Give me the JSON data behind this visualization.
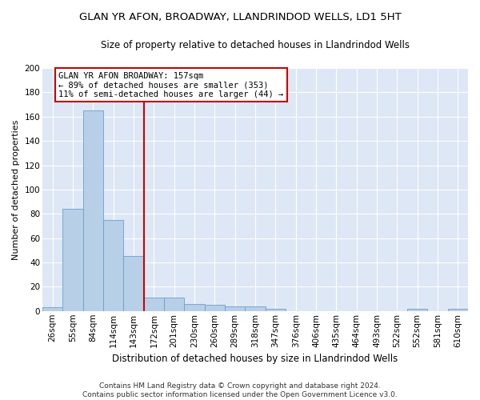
{
  "title": "GLAN YR AFON, BROADWAY, LLANDRINDOD WELLS, LD1 5HT",
  "subtitle": "Size of property relative to detached houses in Llandrindod Wells",
  "xlabel": "Distribution of detached houses by size in Llandrindod Wells",
  "ylabel": "Number of detached properties",
  "categories": [
    "26sqm",
    "55sqm",
    "84sqm",
    "114sqm",
    "143sqm",
    "172sqm",
    "201sqm",
    "230sqm",
    "260sqm",
    "289sqm",
    "318sqm",
    "347sqm",
    "376sqm",
    "406sqm",
    "435sqm",
    "464sqm",
    "493sqm",
    "522sqm",
    "552sqm",
    "581sqm",
    "610sqm"
  ],
  "values": [
    3,
    84,
    165,
    75,
    45,
    11,
    11,
    6,
    5,
    4,
    4,
    2,
    0,
    0,
    0,
    0,
    0,
    0,
    2,
    0,
    2
  ],
  "bar_color": "#b8cfe8",
  "bar_edge_color": "#6a9fcb",
  "bg_color": "#dde7f5",
  "grid_color": "#ffffff",
  "vline_color": "#cc0000",
  "vline_x_index": 5,
  "annotation_line1": "GLAN YR AFON BROADWAY: 157sqm",
  "annotation_line2": "← 89% of detached houses are smaller (353)",
  "annotation_line3": "11% of semi-detached houses are larger (44) →",
  "annotation_box_color": "#ffffff",
  "annotation_box_edge_color": "#cc0000",
  "footer_text": "Contains HM Land Registry data © Crown copyright and database right 2024.\nContains public sector information licensed under the Open Government Licence v3.0.",
  "ylim": [
    0,
    200
  ],
  "yticks": [
    0,
    20,
    40,
    60,
    80,
    100,
    120,
    140,
    160,
    180,
    200
  ],
  "title_fontsize": 9.5,
  "subtitle_fontsize": 8.5,
  "xlabel_fontsize": 8.5,
  "ylabel_fontsize": 8,
  "tick_fontsize": 7.5,
  "ann_fontsize": 7.5,
  "footer_fontsize": 6.5
}
